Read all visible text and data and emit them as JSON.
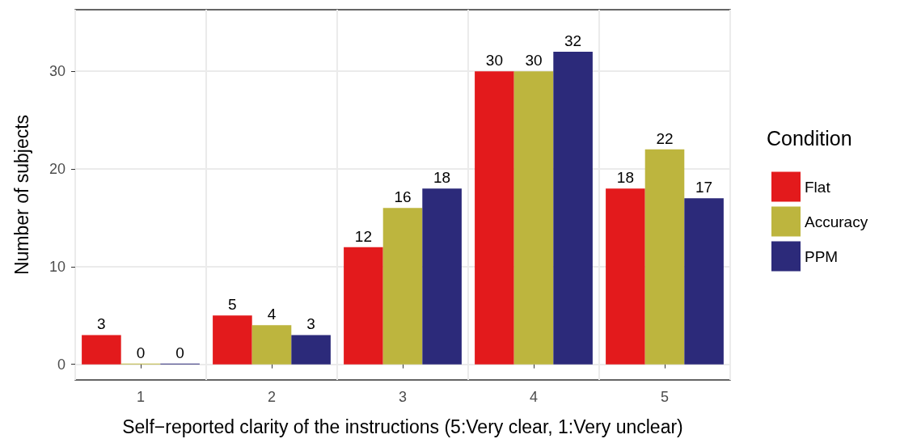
{
  "chart_data": {
    "type": "bar",
    "xlabel": "Self−reported clarity of the instructions (5:Very clear, 1:Very unclear)",
    "ylabel": "Number of subjects",
    "legend_title": "Condition",
    "categories": [
      "1",
      "2",
      "3",
      "4",
      "5"
    ],
    "series": [
      {
        "name": "Flat",
        "color": "#e31a1c",
        "values": [
          3,
          5,
          12,
          30,
          18
        ]
      },
      {
        "name": "Accuracy",
        "color": "#bdb53e",
        "values": [
          0,
          4,
          16,
          30,
          22
        ]
      },
      {
        "name": "PPM",
        "color": "#2c2a7a",
        "values": [
          0,
          3,
          18,
          32,
          17
        ]
      }
    ],
    "ylim": [
      -1.6,
      36.3
    ],
    "yticks": [
      0,
      10,
      20,
      30
    ],
    "grid": true,
    "legend": "right",
    "data_labels": true
  }
}
